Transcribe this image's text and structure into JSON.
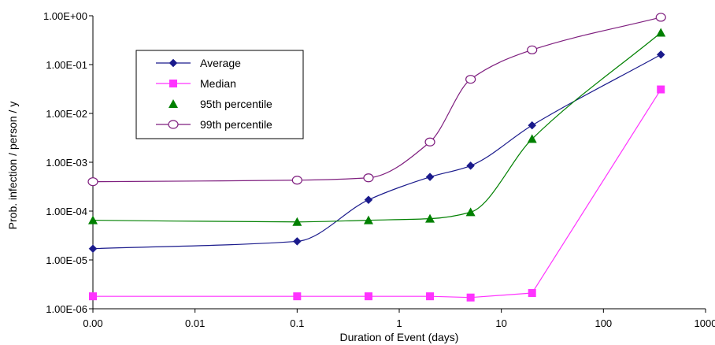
{
  "chart_data": {
    "type": "line",
    "xlabel": "Duration of Event (days)",
    "ylabel": "Prob. infection / person / y",
    "x_scale": "log",
    "y_scale": "log",
    "xlim": [
      0.001,
      1000
    ],
    "ylim": [
      1e-06,
      1
    ],
    "x_ticks": [
      {
        "value": 0.001,
        "label": "0.00"
      },
      {
        "value": 0.01,
        "label": "0.01"
      },
      {
        "value": 0.1,
        "label": "0.1"
      },
      {
        "value": 1,
        "label": "1"
      },
      {
        "value": 10,
        "label": "10"
      },
      {
        "value": 100,
        "label": "100"
      },
      {
        "value": 1000,
        "label": "1000"
      }
    ],
    "y_ticks": [
      {
        "value": 1e-06,
        "label": "1.00E-06"
      },
      {
        "value": 1e-05,
        "label": "1.00E-05"
      },
      {
        "value": 0.0001,
        "label": "1.00E-04"
      },
      {
        "value": 0.001,
        "label": "1.00E-03"
      },
      {
        "value": 0.01,
        "label": "1.00E-02"
      },
      {
        "value": 0.1,
        "label": "1.00E-01"
      },
      {
        "value": 1,
        "label": "1.00E+00"
      }
    ],
    "x": [
      0.001,
      0.1,
      0.5,
      2,
      5,
      20,
      365
    ],
    "grid": false,
    "legend_position": "upper-left",
    "series": [
      {
        "name": "Average",
        "color": "#1a1a8c",
        "marker": "diamond",
        "values": [
          1.7e-05,
          2.4e-05,
          0.00017,
          0.0005,
          0.00085,
          0.0057,
          0.16
        ]
      },
      {
        "name": "Median",
        "color": "#ff33ff",
        "marker": "square",
        "values": [
          1.8e-06,
          1.8e-06,
          1.8e-06,
          1.8e-06,
          1.7e-06,
          2.1e-06,
          0.031
        ]
      },
      {
        "name": "95th percentile",
        "color": "#008000",
        "marker": "triangle",
        "values": [
          6.5e-05,
          6e-05,
          6.5e-05,
          7e-05,
          9.5e-05,
          0.003,
          0.45
        ]
      },
      {
        "name": "99th percentile",
        "color": "#7f1f7f",
        "marker": "circle",
        "values": [
          0.0004,
          0.00043,
          0.00048,
          0.0026,
          0.05,
          0.2,
          0.93
        ]
      }
    ]
  }
}
